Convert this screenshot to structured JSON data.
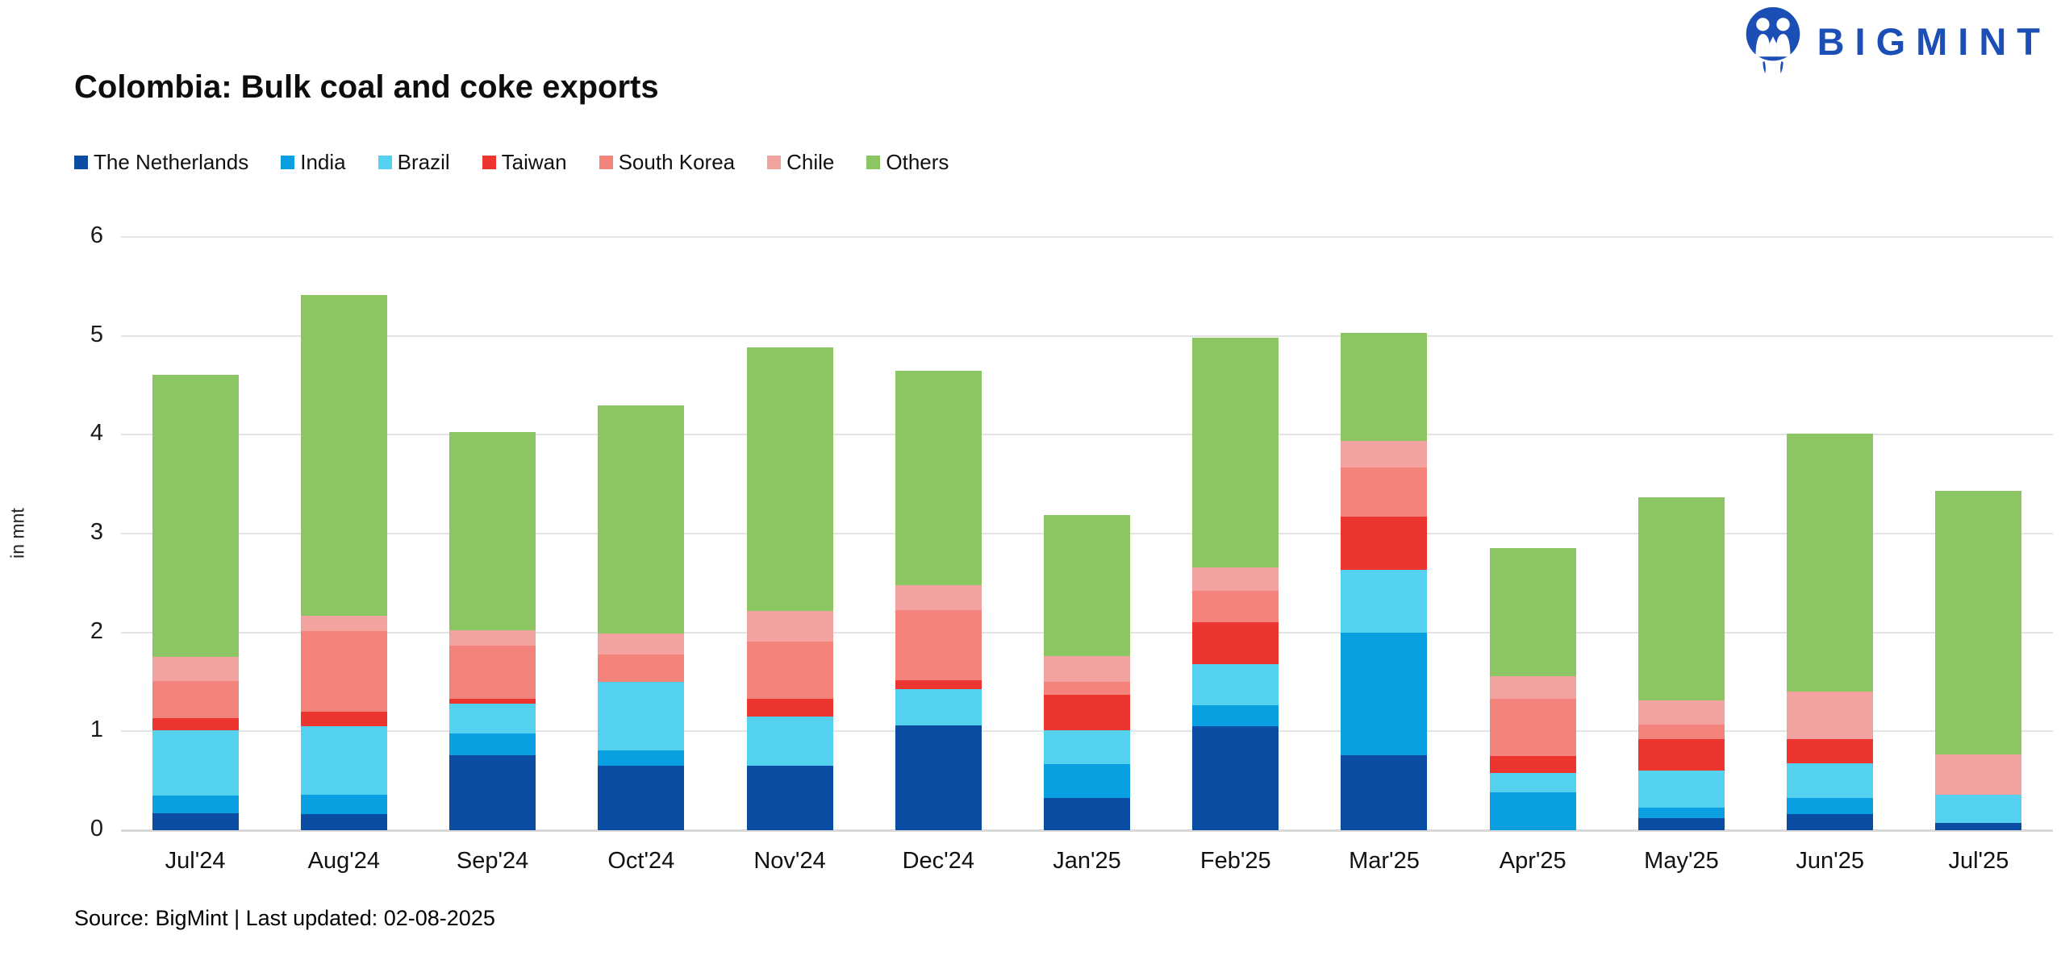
{
  "logo": {
    "brand": "BIGMINT",
    "color": "#1c4fb5",
    "icon": "bigmint-logo-icon"
  },
  "title": "Colombia: Bulk coal and coke exports",
  "footer": {
    "source_text": "Source: BigMint | Last updated: 02-08-2025"
  },
  "chart_data": {
    "type": "bar",
    "stacked": true,
    "title": "Colombia: Bulk coal and coke exports",
    "ylabel": "in mnt",
    "xlabel": "",
    "ylim": [
      0,
      6
    ],
    "yticks": [
      "0",
      "1",
      "2",
      "3",
      "4",
      "5",
      "6"
    ],
    "grid": true,
    "legend_position": "top",
    "categories": [
      "Jul'24",
      "Aug'24",
      "Sep'24",
      "Oct'24",
      "Nov'24",
      "Dec'24",
      "Jan'25",
      "Feb'25",
      "Mar'25",
      "Apr'25",
      "May'25",
      "Jun'25",
      "Jul'25"
    ],
    "series": [
      {
        "name": "The Netherlands",
        "color": "#0b4da2",
        "values": [
          0.17,
          0.16,
          0.76,
          0.65,
          0.65,
          1.06,
          0.33,
          1.05,
          0.76,
          0.0,
          0.12,
          0.16,
          0.07
        ]
      },
      {
        "name": "India",
        "color": "#0a9fe1",
        "values": [
          0.18,
          0.2,
          0.22,
          0.16,
          0.0,
          0.0,
          0.34,
          0.21,
          1.24,
          0.38,
          0.11,
          0.17,
          0.0
        ]
      },
      {
        "name": "Brazil",
        "color": "#55d1f0",
        "values": [
          0.66,
          0.69,
          0.3,
          0.69,
          0.5,
          0.37,
          0.34,
          0.42,
          0.63,
          0.2,
          0.37,
          0.35,
          0.29
        ]
      },
      {
        "name": "Taiwan",
        "color": "#ed3530",
        "values": [
          0.12,
          0.15,
          0.05,
          0.0,
          0.18,
          0.09,
          0.36,
          0.42,
          0.54,
          0.17,
          0.32,
          0.24,
          0.0
        ]
      },
      {
        "name": "South Korea",
        "color": "#f4837b",
        "values": [
          0.38,
          0.81,
          0.54,
          0.28,
          0.58,
          0.71,
          0.13,
          0.32,
          0.5,
          0.58,
          0.15,
          0.0,
          0.0
        ]
      },
      {
        "name": "Chile",
        "color": "#f2a3a0",
        "values": [
          0.24,
          0.16,
          0.15,
          0.21,
          0.31,
          0.25,
          0.26,
          0.24,
          0.27,
          0.23,
          0.24,
          0.48,
          0.41
        ]
      },
      {
        "name": "Others",
        "color": "#8cc663",
        "values": [
          2.86,
          3.24,
          2.01,
          2.31,
          2.66,
          2.17,
          1.43,
          2.32,
          1.09,
          1.29,
          2.06,
          2.61,
          2.66
        ]
      }
    ],
    "totals": [
      4.61,
      5.41,
      4.03,
      4.3,
      4.88,
      4.65,
      3.19,
      4.98,
      5.03,
      2.85,
      3.37,
      4.01,
      3.43
    ]
  }
}
